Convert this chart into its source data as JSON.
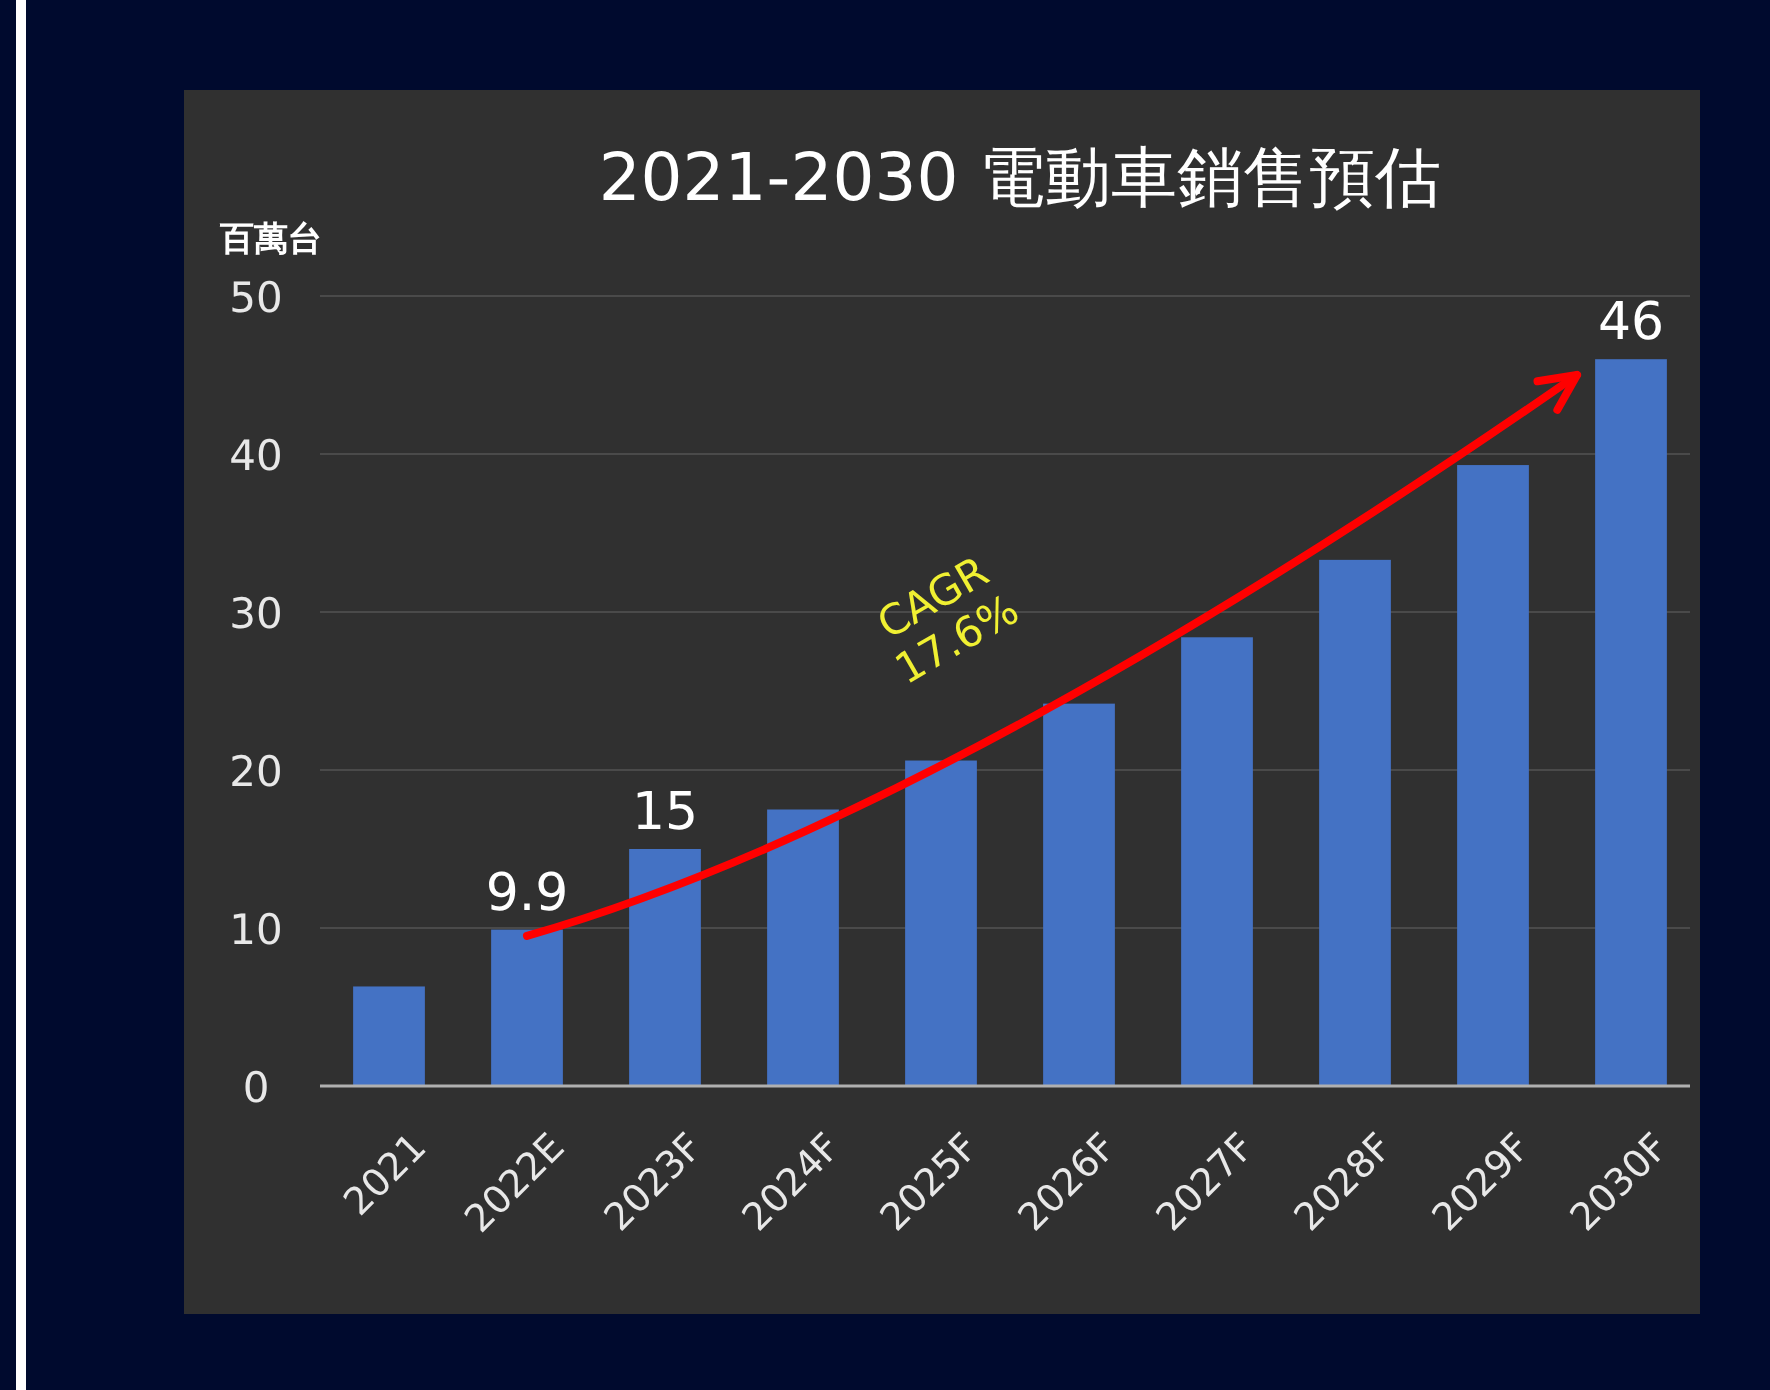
{
  "chart_data": {
    "type": "bar",
    "title": "2021-2030 電動車銷售預估",
    "ylabel": "百萬台",
    "categories": [
      "2021",
      "2022E",
      "2023F",
      "2024F",
      "2025F",
      "2026F",
      "2027F",
      "2028F",
      "2029F",
      "2030F"
    ],
    "values": [
      6.3,
      9.9,
      15,
      17.5,
      20.6,
      24.2,
      28.4,
      33.3,
      39.3,
      46
    ],
    "value_labels": [
      null,
      "9.9",
      "15",
      null,
      null,
      null,
      null,
      null,
      null,
      "46"
    ],
    "color": "#4472c4",
    "ylim": [
      0,
      50
    ],
    "yticks": [
      0,
      10,
      20,
      30,
      40,
      50
    ],
    "grid": "y",
    "annotations": [
      "CAGR 17.6%"
    ]
  }
}
